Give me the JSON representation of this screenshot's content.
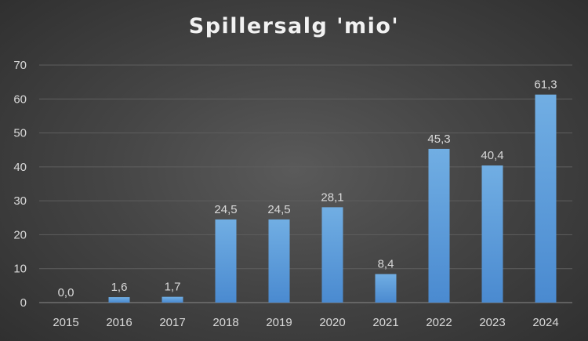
{
  "chart_data": {
    "type": "bar",
    "title": "Spillersalg 'mio'",
    "categories": [
      "2015",
      "2016",
      "2017",
      "2018",
      "2019",
      "2020",
      "2021",
      "2022",
      "2023",
      "2024"
    ],
    "values": [
      0.0,
      1.6,
      1.7,
      24.5,
      24.5,
      28.1,
      8.4,
      45.3,
      40.4,
      61.3
    ],
    "data_labels": [
      "0,0",
      "1,6",
      "1,7",
      "24,5",
      "24,5",
      "28,1",
      "8,4",
      "45,3",
      "40,4",
      "61,3"
    ],
    "ylim": [
      0,
      70
    ],
    "yticks": [
      0,
      10,
      20,
      30,
      40,
      50,
      60,
      70
    ],
    "xlabel": "",
    "ylabel": "",
    "grid": true,
    "legend": "none",
    "bar_color": "#5b9bd5",
    "background_color": "#404040"
  }
}
